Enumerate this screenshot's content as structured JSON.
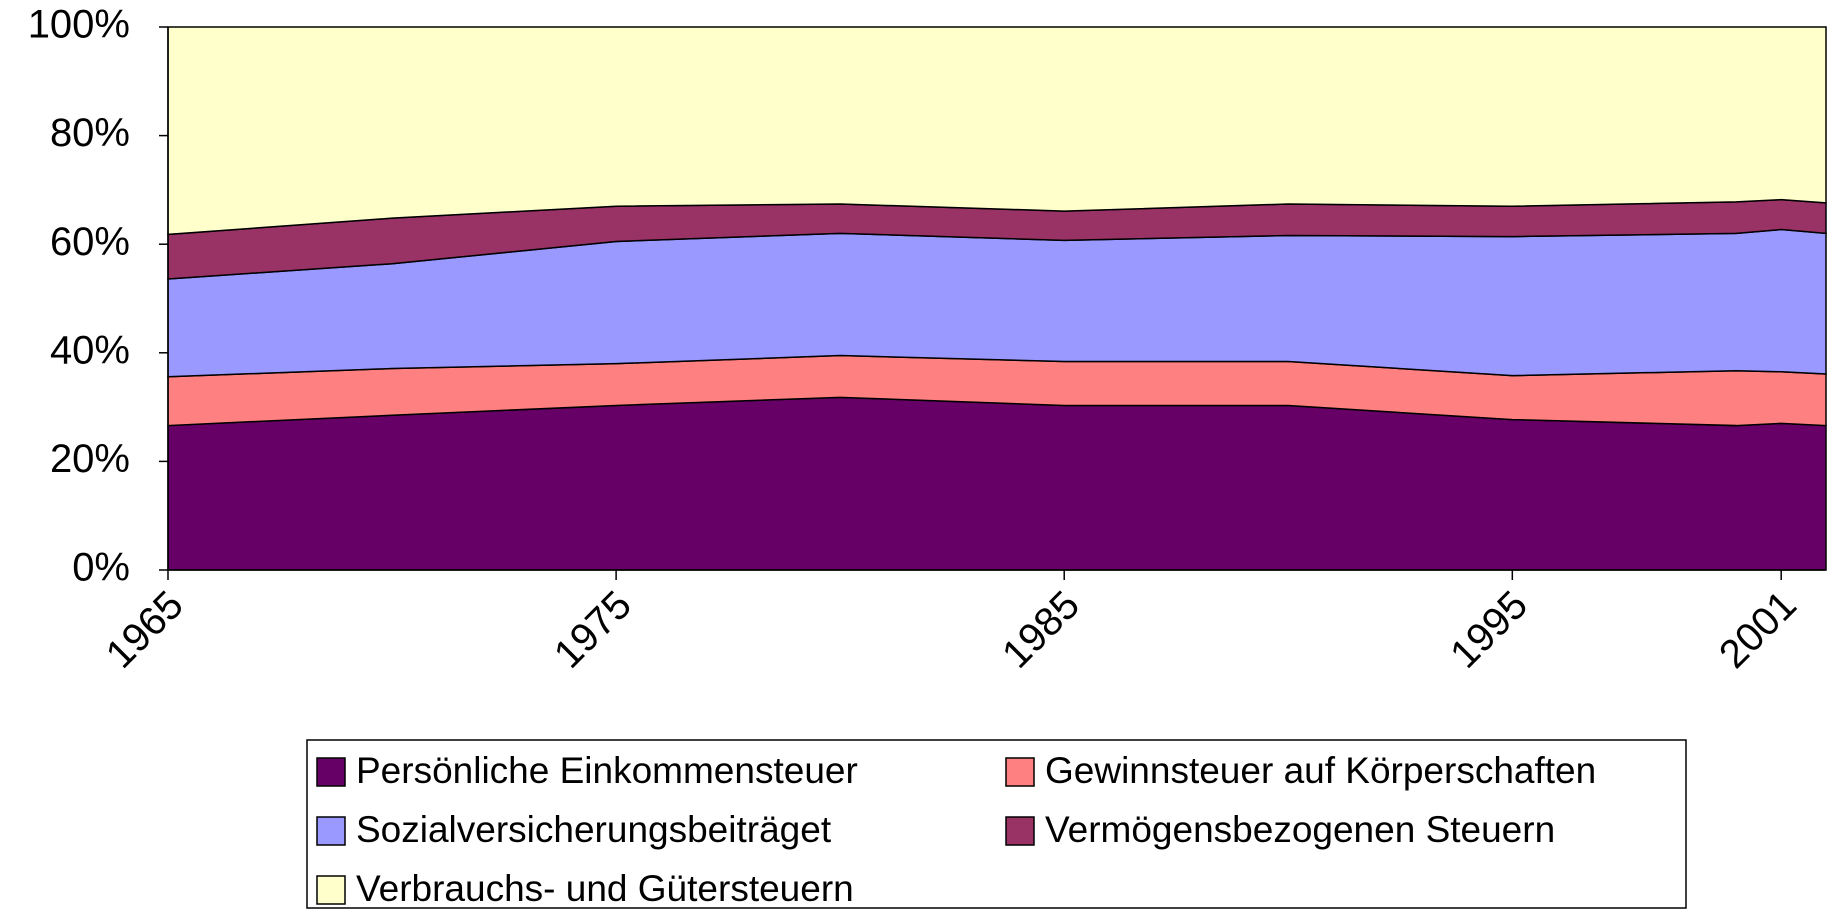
{
  "chart_data": {
    "type": "stacked_area",
    "x": [
      1965,
      1970,
      1975,
      1980,
      1985,
      1990,
      1995,
      2000,
      2001,
      2002
    ],
    "xlim": [
      1965,
      2002
    ],
    "xticks": [
      1965,
      1975,
      1985,
      1995,
      2001
    ],
    "ylim": [
      0,
      100
    ],
    "yticks": [
      {
        "value": 0,
        "label": "0%"
      },
      {
        "value": 20,
        "label": "20%"
      },
      {
        "value": 40,
        "label": "40%"
      },
      {
        "value": 60,
        "label": "60%"
      },
      {
        "value": 80,
        "label": "80%"
      },
      {
        "value": 100,
        "label": "100%"
      }
    ],
    "legend": "bottom",
    "series": [
      {
        "name": "Persönliche Einkommensteuer",
        "color": "#660066",
        "values": [
          26.6,
          28.5,
          30.3,
          31.8,
          30.3,
          30.3,
          27.7,
          26.6,
          27.0,
          26.6
        ]
      },
      {
        "name": "Gewinnsteuer auf Körperschaften",
        "color": "#ff8080",
        "values": [
          9.0,
          8.6,
          7.7,
          7.7,
          8.1,
          8.1,
          8.1,
          10.1,
          9.5,
          9.5
        ]
      },
      {
        "name": "Sozialversicherungsbeiträget",
        "color": "#9999ff",
        "values": [
          18.0,
          19.3,
          22.5,
          22.5,
          22.3,
          23.2,
          25.6,
          25.3,
          26.2,
          25.9
        ]
      },
      {
        "name": "Vermögensbezogenen Steuern",
        "color": "#993366",
        "values": [
          8.2,
          8.4,
          6.5,
          5.4,
          5.4,
          5.8,
          5.6,
          5.8,
          5.5,
          5.6
        ]
      },
      {
        "name": "Verbrauchs- und Gütersteuern",
        "color": "#ffffcc",
        "values": [
          38.2,
          35.2,
          33.0,
          32.6,
          33.9,
          32.6,
          33.0,
          32.2,
          31.8,
          32.4
        ]
      }
    ]
  }
}
